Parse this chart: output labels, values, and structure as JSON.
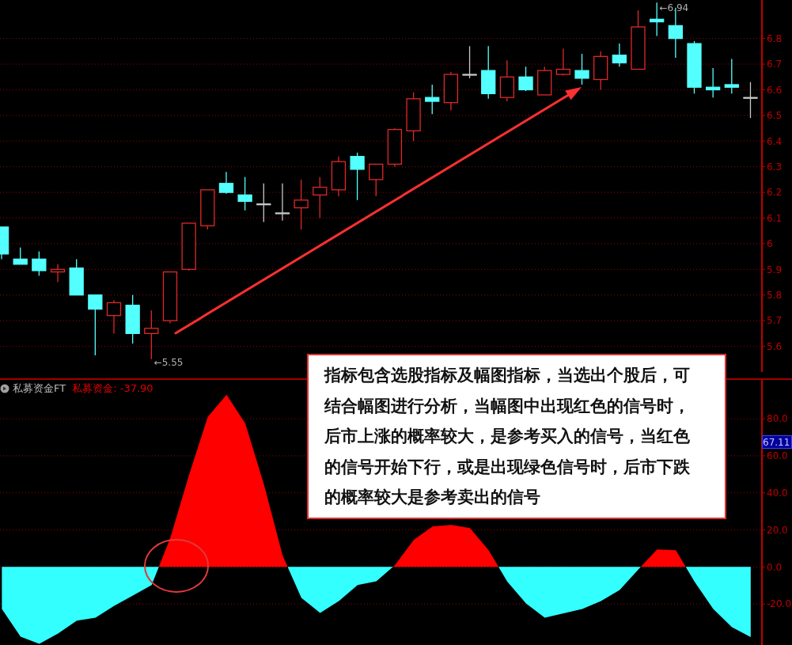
{
  "chart_data": [
    {
      "type": "candlestick",
      "categories": [
        null,
        null,
        null,
        null,
        null,
        null,
        null,
        null,
        null,
        null,
        null,
        null,
        null,
        null,
        null,
        null,
        null,
        null,
        null,
        null,
        null,
        null,
        null,
        null,
        null,
        null,
        null,
        null,
        null,
        null,
        null,
        null,
        null,
        null,
        null,
        null,
        null,
        null,
        null,
        null,
        null
      ],
      "ohlc": [
        [
          6.065,
          6.065,
          5.94,
          5.96
        ],
        [
          5.94,
          5.985,
          5.92,
          5.92
        ],
        [
          5.94,
          5.97,
          5.875,
          5.895
        ],
        [
          5.89,
          5.92,
          5.85,
          5.9
        ],
        [
          5.905,
          5.94,
          5.8,
          5.8
        ],
        [
          5.8,
          5.8,
          5.565,
          5.745
        ],
        [
          5.72,
          5.78,
          5.65,
          5.77
        ],
        [
          5.76,
          5.8,
          5.61,
          5.65
        ],
        [
          5.65,
          5.74,
          5.55,
          5.67
        ],
        [
          5.7,
          5.89,
          5.69,
          5.89
        ],
        [
          5.9,
          6.08,
          5.895,
          6.08
        ],
        [
          6.07,
          6.21,
          6.055,
          6.21
        ],
        [
          6.235,
          6.28,
          6.195,
          6.2
        ],
        [
          6.19,
          6.26,
          6.13,
          6.165
        ],
        [
          6.155,
          6.235,
          6.085,
          6.155
        ],
        [
          6.12,
          6.235,
          6.09,
          6.12
        ],
        [
          6.14,
          6.25,
          6.055,
          6.17
        ],
        [
          6.19,
          6.26,
          6.1,
          6.22
        ],
        [
          6.21,
          6.34,
          6.185,
          6.32
        ],
        [
          6.34,
          6.355,
          6.17,
          6.29
        ],
        [
          6.25,
          6.31,
          6.185,
          6.31
        ],
        [
          6.31,
          6.45,
          6.3,
          6.445
        ],
        [
          6.44,
          6.59,
          6.4,
          6.565
        ],
        [
          6.57,
          6.62,
          6.505,
          6.555
        ],
        [
          6.55,
          6.67,
          6.52,
          6.66
        ],
        [
          6.66,
          6.77,
          6.645,
          6.66
        ],
        [
          6.675,
          6.77,
          6.565,
          6.585
        ],
        [
          6.57,
          6.715,
          6.555,
          6.65
        ],
        [
          6.65,
          6.69,
          6.595,
          6.6
        ],
        [
          6.58,
          6.69,
          6.58,
          6.675
        ],
        [
          6.66,
          6.76,
          6.655,
          6.68
        ],
        [
          6.675,
          6.74,
          6.62,
          6.645
        ],
        [
          6.64,
          6.75,
          6.6,
          6.73
        ],
        [
          6.735,
          6.78,
          6.69,
          6.705
        ],
        [
          6.68,
          6.91,
          6.68,
          6.845
        ],
        [
          6.875,
          6.94,
          6.81,
          6.865
        ],
        [
          6.85,
          6.92,
          6.725,
          6.8
        ],
        [
          6.78,
          6.79,
          6.585,
          6.61
        ],
        [
          6.61,
          6.685,
          6.57,
          6.6
        ],
        [
          6.62,
          6.72,
          6.585,
          6.61
        ],
        [
          6.57,
          6.63,
          6.49,
          6.57
        ]
      ],
      "colors": [
        "#54ffff",
        "#54ffff",
        "#54ffff",
        "#e02828",
        "#54ffff",
        "#54ffff",
        "#e02828",
        "#54ffff",
        "#e02828",
        "#e02828",
        "#e02828",
        "#e02828",
        "#54ffff",
        "#54ffff",
        "#c8c8c8",
        "#c8c8c8",
        "#e02828",
        "#e02828",
        "#e02828",
        "#54ffff",
        "#e02828",
        "#e02828",
        "#e02828",
        "#54ffff",
        "#e02828",
        "#c8c8c8",
        "#54ffff",
        "#e02828",
        "#54ffff",
        "#e02828",
        "#e02828",
        "#54ffff",
        "#e02828",
        "#54ffff",
        "#e02828",
        "#54ffff",
        "#54ffff",
        "#54ffff",
        "#54ffff",
        "#54ffff",
        "#c8c8c8"
      ],
      "ylim": [
        5.5,
        6.95
      ],
      "yticks": [
        5.6,
        5.7,
        5.8,
        5.9,
        6.0,
        6.1,
        6.2,
        6.3,
        6.4,
        6.5,
        6.6,
        6.7,
        6.8
      ],
      "grid": "y",
      "annotations": [
        "←5.55",
        "←6.94"
      ]
    },
    {
      "type": "area",
      "title": "私募资金FT",
      "categories": [
        null,
        null,
        null,
        null,
        null,
        null,
        null,
        null,
        null,
        null,
        null,
        null,
        null,
        null,
        null,
        null,
        null,
        null,
        null,
        null,
        null,
        null,
        null,
        null,
        null,
        null,
        null,
        null,
        null,
        null,
        null,
        null,
        null,
        null,
        null,
        null,
        null,
        null,
        null,
        null,
        null
      ],
      "series": [
        {
          "colors": [
            "#33ffff",
            "#33ffff",
            "#33ffff",
            "#33ffff",
            "#33ffff",
            "#33ffff",
            "#33ffff",
            "#33ffff",
            "#33ffff",
            "#ff0000",
            "#ff0000",
            "#ff0000",
            "#ff0000",
            "#ff0000",
            "#ff0000",
            "#ff0000",
            "#33ffff",
            "#33ffff",
            "#33ffff",
            "#33ffff",
            "#33ffff",
            "#ff0000",
            "#ff0000",
            "#ff0000",
            "#ff0000",
            "#ff0000",
            "#ff0000",
            "#33ffff",
            "#33ffff",
            "#33ffff",
            "#33ffff",
            "#33ffff",
            "#33ffff",
            "#33ffff",
            "#33ffff",
            "#ff0000",
            "#ff0000",
            "#33ffff",
            "#33ffff",
            "#33ffff",
            "#33ffff"
          ],
          "values": [
            -22.7,
            -37.7,
            -41.5,
            -36,
            -29,
            -27.4,
            -21,
            -15.4,
            -9.8,
            15.8,
            49.7,
            81,
            93,
            77.5,
            44.5,
            6,
            -16.7,
            -24.8,
            -18.4,
            -9.8,
            -7.7,
            1,
            14.6,
            21.8,
            22.7,
            21,
            9,
            -8,
            -19.7,
            -27.4,
            -25,
            -22.7,
            -18.4,
            -12.4,
            -1.3,
            9.4,
            9,
            -8,
            -22.7,
            -32.5,
            -37.9
          ]
        }
      ],
      "ylim": [
        -43,
        101
      ],
      "yticks": [
        {
          "value": -20,
          "label": "-20.0"
        },
        {
          "value": 0,
          "label": "0.0"
        },
        {
          "value": 20,
          "label": "20.0"
        },
        {
          "value": 40,
          "label": "40.0"
        },
        {
          "value": 60,
          "label": "60.0"
        },
        {
          "value": 80,
          "label": "80.0"
        }
      ],
      "grid": "y",
      "annotations": [
        "指标包含选股指标及幅图指标，当选出个股后，可结合幅图进行分析，当幅图中出现红色的信号时，后市上涨的概率较大，是参考买入的信号，当红色的信号开始下行，或是出现绿色信号时，后市下跌的概率较大是参考卖出的信号",
        "私募资金: -37.90",
        {
          "text": "67.11",
          "y": 67.11
        }
      ]
    }
  ]
}
